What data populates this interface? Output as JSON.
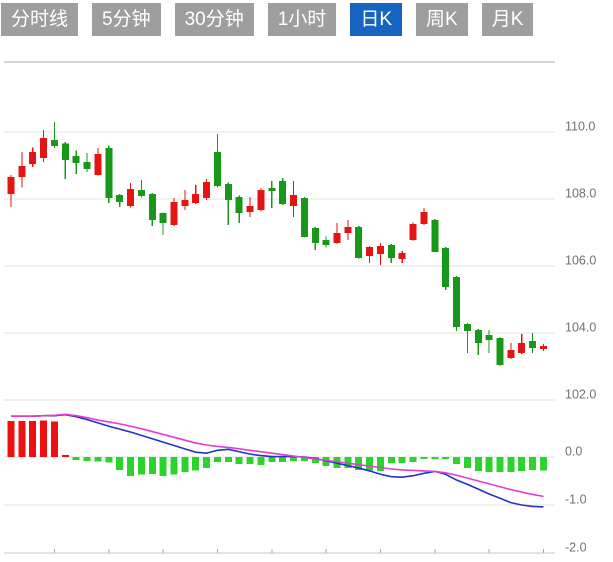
{
  "tabs": {
    "items": [
      {
        "label": "分时线",
        "active": false
      },
      {
        "label": "5分钟",
        "active": false
      },
      {
        "label": "30分钟",
        "active": false
      },
      {
        "label": "1小时",
        "active": false
      },
      {
        "label": "日K",
        "active": true
      },
      {
        "label": "周K",
        "active": false
      },
      {
        "label": "月K",
        "active": false
      }
    ]
  },
  "colors": {
    "up": "#e31412",
    "down": "#189818",
    "macd_up": "#ee1010",
    "macd_down": "#2bd42b",
    "dif_line": "#2432c8",
    "dea_line": "#e23ed0",
    "tab_bg": "#9e9e9e",
    "tab_active_bg": "#1565c0",
    "tab_text": "#ffffff",
    "grid": "#e2e2e2",
    "axis_line": "#c4c4c4",
    "axis_text": "#707070"
  },
  "chart_data": {
    "type": "candlestick",
    "legend": "none",
    "grid": "horizontal",
    "price_axis": {
      "side": "right",
      "ticks": [
        110.0,
        108.0,
        106.0,
        104.0,
        102.0
      ],
      "labels": [
        "110.0",
        "108.0",
        "106.0",
        "104.0",
        "102.0"
      ],
      "range": [
        101.6,
        111.1
      ]
    },
    "macd_axis": {
      "side": "right",
      "ticks": [
        0.0,
        -1.0,
        -2.0
      ],
      "labels": [
        "0.0",
        "-1.0",
        "-2.0"
      ],
      "range": [
        -2.0,
        1.0
      ]
    },
    "x_axis": {
      "tick_every": 5,
      "labels": []
    },
    "candles_ohlc": [
      [
        108.15,
        108.72,
        107.76,
        108.66
      ],
      [
        108.65,
        109.4,
        108.35,
        108.99
      ],
      [
        109.04,
        109.53,
        108.96,
        109.4
      ],
      [
        109.22,
        110.06,
        109.1,
        109.82
      ],
      [
        109.76,
        110.3,
        109.52,
        109.58
      ],
      [
        109.65,
        109.7,
        108.6,
        109.16
      ],
      [
        109.28,
        109.45,
        108.75,
        109.07
      ],
      [
        109.1,
        109.37,
        108.81,
        108.9
      ],
      [
        108.72,
        109.52,
        108.7,
        109.34
      ],
      [
        109.52,
        109.6,
        107.88,
        108.03
      ],
      [
        108.12,
        108.15,
        107.76,
        107.91
      ],
      [
        107.79,
        108.48,
        107.75,
        108.3
      ],
      [
        108.27,
        108.57,
        108.05,
        108.09
      ],
      [
        108.15,
        108.18,
        107.19,
        107.37
      ],
      [
        107.58,
        107.6,
        106.93,
        107.28
      ],
      [
        107.22,
        108.03,
        107.2,
        107.91
      ],
      [
        107.79,
        108.27,
        107.67,
        107.97
      ],
      [
        107.88,
        108.42,
        107.85,
        108.15
      ],
      [
        108.03,
        108.6,
        107.97,
        108.51
      ],
      [
        109.4,
        109.94,
        108.35,
        108.39
      ],
      [
        108.45,
        108.5,
        107.22,
        107.97
      ],
      [
        108.06,
        108.1,
        107.28,
        107.58
      ],
      [
        107.61,
        108.06,
        107.46,
        107.79
      ],
      [
        107.67,
        108.33,
        107.63,
        108.27
      ],
      [
        108.33,
        108.54,
        107.73,
        108.24
      ],
      [
        108.54,
        108.62,
        107.82,
        107.85
      ],
      [
        107.79,
        108.54,
        107.46,
        108.12
      ],
      [
        108.03,
        108.06,
        106.85,
        106.87
      ],
      [
        107.13,
        107.16,
        106.48,
        106.69
      ],
      [
        106.78,
        106.88,
        106.55,
        106.63
      ],
      [
        106.69,
        107.28,
        106.65,
        106.99
      ],
      [
        106.99,
        107.37,
        106.78,
        107.16
      ],
      [
        107.16,
        107.2,
        106.22,
        106.24
      ],
      [
        106.3,
        106.6,
        106.09,
        106.57
      ],
      [
        106.36,
        106.69,
        106.03,
        106.6
      ],
      [
        106.63,
        106.66,
        106.09,
        106.24
      ],
      [
        106.21,
        106.45,
        106.09,
        106.39
      ],
      [
        106.78,
        107.3,
        106.75,
        107.25
      ],
      [
        107.25,
        107.73,
        107.22,
        107.61
      ],
      [
        107.37,
        107.4,
        106.42,
        106.42
      ],
      [
        106.54,
        106.57,
        105.28,
        105.37
      ],
      [
        105.67,
        105.7,
        104.06,
        104.18
      ],
      [
        104.27,
        104.3,
        103.4,
        104.06
      ],
      [
        104.09,
        104.12,
        103.34,
        103.7
      ],
      [
        103.94,
        104.09,
        103.4,
        103.79
      ],
      [
        103.85,
        103.88,
        103.02,
        103.04
      ],
      [
        103.25,
        103.7,
        103.22,
        103.49
      ],
      [
        103.4,
        103.97,
        103.37,
        103.7
      ],
      [
        103.76,
        104.0,
        103.4,
        103.55
      ],
      [
        103.52,
        103.67,
        103.46,
        103.61
      ]
    ],
    "macd_histogram": [
      0.75,
      0.75,
      0.75,
      0.76,
      0.74,
      0.02,
      -0.06,
      -0.08,
      -0.09,
      -0.11,
      -0.27,
      -0.4,
      -0.36,
      -0.35,
      -0.4,
      -0.36,
      -0.31,
      -0.28,
      -0.23,
      -0.1,
      -0.1,
      -0.15,
      -0.15,
      -0.17,
      -0.1,
      -0.1,
      -0.08,
      -0.08,
      -0.13,
      -0.19,
      -0.23,
      -0.23,
      -0.27,
      -0.28,
      -0.29,
      -0.13,
      -0.13,
      -0.1,
      -0.04,
      -0.01,
      -0.02,
      -0.15,
      -0.23,
      -0.29,
      -0.31,
      -0.31,
      -0.31,
      -0.29,
      -0.27,
      -0.28
    ],
    "series": [
      {
        "name": "DIF",
        "values": [
          0.85,
          0.85,
          0.85,
          0.86,
          0.86,
          0.88,
          0.84,
          0.78,
          0.71,
          0.64,
          0.58,
          0.52,
          0.45,
          0.38,
          0.31,
          0.24,
          0.17,
          0.1,
          0.08,
          0.14,
          0.16,
          0.11,
          0.06,
          0.03,
          0.01,
          0.01,
          0.01,
          0.0,
          -0.03,
          -0.08,
          -0.13,
          -0.18,
          -0.23,
          -0.29,
          -0.36,
          -0.41,
          -0.42,
          -0.39,
          -0.34,
          -0.3,
          -0.36,
          -0.48,
          -0.57,
          -0.67,
          -0.77,
          -0.86,
          -0.95,
          -1.0,
          -1.03,
          -1.04
        ]
      },
      {
        "name": "DEA",
        "values": [
          0.85,
          0.85,
          0.85,
          0.86,
          0.87,
          0.89,
          0.86,
          0.82,
          0.77,
          0.73,
          0.69,
          0.64,
          0.59,
          0.53,
          0.47,
          0.41,
          0.35,
          0.29,
          0.25,
          0.22,
          0.2,
          0.17,
          0.14,
          0.11,
          0.08,
          0.05,
          0.02,
          -0.01,
          -0.04,
          -0.07,
          -0.1,
          -0.13,
          -0.16,
          -0.19,
          -0.22,
          -0.25,
          -0.27,
          -0.28,
          -0.29,
          -0.3,
          -0.33,
          -0.38,
          -0.44,
          -0.5,
          -0.56,
          -0.62,
          -0.68,
          -0.73,
          -0.78,
          -0.82
        ]
      }
    ]
  }
}
